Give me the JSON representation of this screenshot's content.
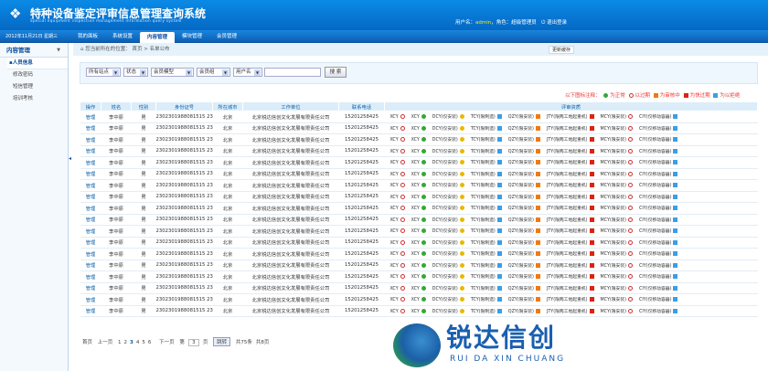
{
  "header": {
    "title": "特种设备鉴定评审信息管理查询系统",
    "subtitle": "Special equipment inspection management information query system",
    "user_label": "用户名：",
    "user": "admin",
    "role_label": "，角色：",
    "role": "超级管理员",
    "logout": "退出登录"
  },
  "nav": {
    "date": "2012年11月21日  星期三",
    "tabs": [
      "我的面板",
      "系统设置",
      "内容管理",
      "模块管理",
      "会员管理"
    ],
    "active": 2
  },
  "sidebar": {
    "title": "内容管理",
    "items": [
      "人员信息",
      "修改密码",
      "短信管理",
      "培训考核"
    ]
  },
  "breadcrumb": {
    "prefix": "您当前所在的位置：",
    "home": "首页",
    "sep": ">",
    "current": "名单公布"
  },
  "refresh_label": "更新缓存",
  "search": {
    "selects": [
      "所有站点",
      "状态",
      "会员模型",
      "会员组",
      "用户名"
    ],
    "keyword": "",
    "button": "搜 索"
  },
  "legend": {
    "intro": "以下图标注释：",
    "items": [
      {
        "icon": "check-circle",
        "label": "为正常"
      },
      {
        "icon": "expired-circle",
        "label": "以过期"
      },
      {
        "icon": "orange-square",
        "label": "为审核中"
      },
      {
        "icon": "red-square",
        "label": "为快过期"
      },
      {
        "icon": "blue-square",
        "label": "为以拒绝"
      }
    ]
  },
  "colors": {
    "header": "#0568c4",
    "accent": "#0a5fa8",
    "legend": "#e33333"
  },
  "table": {
    "columns": [
      "操作",
      "姓名",
      "性别",
      "身份证号",
      "所在城市",
      "工作单位",
      "联系电话",
      "评审资质"
    ],
    "qualifications": [
      {
        "label": "XCY",
        "icon": "expired-circle"
      },
      {
        "label": "XCY",
        "icon": "check-circle"
      },
      {
        "label": "DCY(仅安装)",
        "icon": "bulb"
      },
      {
        "label": "TCY(限制造)",
        "icon": "blue-square"
      },
      {
        "label": "QZY(限安装)",
        "icon": "orange-square"
      },
      {
        "label": "JTY(限两工地起重机)",
        "icon": "red-square"
      },
      {
        "label": "MCY(限安装)",
        "icon": "expired-circle"
      },
      {
        "label": "CIY(仅移动容器)",
        "icon": "blue-square"
      }
    ],
    "rows": [
      {
        "op": "管理",
        "name": "李中原",
        "sex": "男",
        "id": "2302301988081515 23",
        "city": "北京",
        "org": "北京锐达信创文化发展有限责任公司",
        "phone": "15201258425"
      }
    ],
    "row_count": 18
  },
  "pager": {
    "first": "首页",
    "prev": "上一页",
    "pages": [
      "1",
      "2",
      "3",
      "4",
      "5",
      "6"
    ],
    "current": "3",
    "next": "下一页",
    "goto_prefix": "第",
    "goto_value": "3",
    "goto_suffix": "页",
    "go": "跳转",
    "total": "共75条",
    "pages_total": "共8页"
  },
  "watermark": {
    "text": "锐达信创",
    "sub": "RUI DA XIN CHUANG"
  }
}
